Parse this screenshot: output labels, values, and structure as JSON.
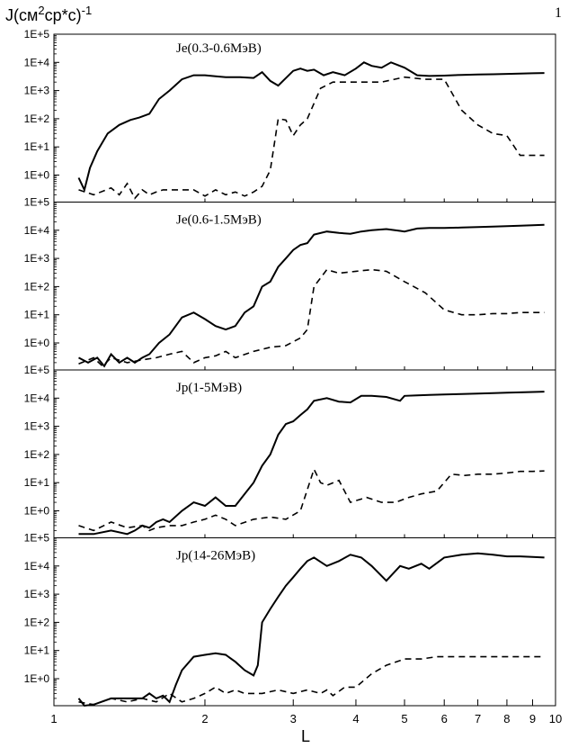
{
  "figure": {
    "ylabel_prefix": "J(см",
    "ylabel_sup1": "2",
    "ylabel_mid": "ср*с)",
    "ylabel_sup2": "-1",
    "xlabel": "L",
    "figure_number": "1"
  },
  "chart_data": [
    {
      "type": "line",
      "title": "Je(0.3-0.6МэВ)",
      "y_scale": "log",
      "ylim": [
        0.1,
        100000
      ],
      "y_ticks": [
        "1E+5",
        "1E+4",
        "1E+3",
        "1E+2",
        "1E+1",
        "1E+0"
      ],
      "x_scale": "log",
      "xlim": [
        1,
        10
      ],
      "series": [
        {
          "style": "solid",
          "x": [
            1.12,
            1.15,
            1.18,
            1.22,
            1.28,
            1.35,
            1.42,
            1.48,
            1.55,
            1.62,
            1.7,
            1.8,
            1.9,
            2.0,
            2.1,
            2.2,
            2.35,
            2.5,
            2.6,
            2.7,
            2.8,
            3.0,
            3.1,
            3.2,
            3.3,
            3.45,
            3.6,
            3.8,
            4.0,
            4.15,
            4.3,
            4.5,
            4.7,
            5.0,
            5.3,
            5.6,
            6.0,
            6.5,
            7.0,
            7.5,
            8.0,
            8.5,
            9.0,
            9.5
          ],
          "y": [
            0.8,
            0.3,
            1.8,
            7,
            30,
            60,
            90,
            110,
            150,
            500,
            1000,
            2500,
            3500,
            3500,
            3200,
            3000,
            3000,
            2800,
            4500,
            2200,
            1500,
            5000,
            6000,
            5000,
            5500,
            3500,
            4500,
            3500,
            6000,
            10000,
            7500,
            6500,
            10000,
            6500,
            3500,
            3300,
            3400,
            3600,
            3700,
            3800,
            3900,
            4000,
            4100,
            4200
          ]
        },
        {
          "style": "dashed",
          "x": [
            1.12,
            1.2,
            1.3,
            1.35,
            1.4,
            1.45,
            1.5,
            1.55,
            1.6,
            1.65,
            1.7,
            1.8,
            1.9,
            2.0,
            2.1,
            2.2,
            2.3,
            2.4,
            2.5,
            2.6,
            2.7,
            2.8,
            2.9,
            3.0,
            3.1,
            3.2,
            3.4,
            3.6,
            3.8,
            4.0,
            4.5,
            5.0,
            5.5,
            6.0,
            6.5,
            7.0,
            7.5,
            8.0,
            8.5,
            9.0,
            9.5
          ],
          "y": [
            0.3,
            0.2,
            0.35,
            0.2,
            0.5,
            0.15,
            0.3,
            0.2,
            0.25,
            0.3,
            0.3,
            0.3,
            0.3,
            0.18,
            0.3,
            0.2,
            0.25,
            0.18,
            0.25,
            0.4,
            1.5,
            100,
            90,
            25,
            60,
            100,
            1200,
            2000,
            2000,
            2000,
            2000,
            3000,
            2500,
            2500,
            200,
            60,
            30,
            25,
            5,
            5,
            5
          ]
        }
      ]
    },
    {
      "type": "line",
      "title": "Je(0.6-1.5МэВ)",
      "y_scale": "log",
      "ylim": [
        0.1,
        100000
      ],
      "y_ticks": [
        "1E+5",
        "1E+4",
        "1E+3",
        "1E+2",
        "1E+1",
        "1E+0"
      ],
      "x_scale": "log",
      "xlim": [
        1,
        10
      ],
      "series": [
        {
          "style": "solid",
          "x": [
            1.12,
            1.17,
            1.22,
            1.26,
            1.3,
            1.35,
            1.4,
            1.45,
            1.5,
            1.55,
            1.62,
            1.7,
            1.8,
            1.9,
            2.0,
            2.1,
            2.2,
            2.3,
            2.4,
            2.5,
            2.6,
            2.7,
            2.8,
            2.9,
            3.0,
            3.1,
            3.2,
            3.3,
            3.5,
            3.7,
            3.9,
            4.1,
            4.3,
            4.6,
            4.9,
            5.0,
            5.3,
            5.6,
            6.0,
            6.5,
            7.0,
            7.5,
            8.0,
            8.5,
            9.0,
            9.5
          ],
          "y": [
            0.3,
            0.2,
            0.3,
            0.15,
            0.4,
            0.2,
            0.3,
            0.2,
            0.3,
            0.4,
            1,
            2,
            8,
            12,
            7,
            4,
            3,
            4,
            12,
            20,
            100,
            150,
            500,
            1000,
            2000,
            3000,
            3500,
            7000,
            9000,
            8000,
            7500,
            9000,
            10000,
            11000,
            9500,
            9000,
            11500,
            12000,
            12000,
            12500,
            13000,
            13500,
            14000,
            14500,
            15000,
            15500
          ]
        },
        {
          "style": "dashed",
          "x": [
            1.12,
            1.2,
            1.25,
            1.3,
            1.4,
            1.5,
            1.6,
            1.7,
            1.8,
            1.9,
            2.0,
            2.1,
            2.2,
            2.3,
            2.5,
            2.7,
            2.9,
            3.1,
            3.2,
            3.3,
            3.5,
            3.7,
            4.0,
            4.3,
            4.6,
            5.0,
            5.5,
            6.0,
            6.5,
            7.0,
            7.5,
            8.0,
            8.5,
            9.0,
            9.5
          ],
          "y": [
            0.18,
            0.3,
            0.15,
            0.3,
            0.2,
            0.25,
            0.3,
            0.4,
            0.5,
            0.2,
            0.3,
            0.35,
            0.5,
            0.3,
            0.5,
            0.7,
            0.8,
            1.5,
            3,
            100,
            400,
            300,
            350,
            400,
            350,
            150,
            60,
            15,
            10,
            10,
            11,
            11,
            12,
            12,
            12
          ]
        }
      ]
    },
    {
      "type": "line",
      "title": "Jp(1-5МэВ)",
      "y_scale": "log",
      "ylim": [
        0.1,
        100000
      ],
      "y_ticks": [
        "1E+5",
        "1E+4",
        "1E+3",
        "1E+2",
        "1E+1",
        "1E+0"
      ],
      "x_scale": "log",
      "xlim": [
        1,
        10
      ],
      "series": [
        {
          "style": "solid",
          "x": [
            1.12,
            1.2,
            1.3,
            1.4,
            1.45,
            1.5,
            1.55,
            1.6,
            1.65,
            1.7,
            1.8,
            1.9,
            2.0,
            2.1,
            2.2,
            2.3,
            2.4,
            2.5,
            2.6,
            2.7,
            2.8,
            2.9,
            3.0,
            3.1,
            3.2,
            3.3,
            3.5,
            3.7,
            3.9,
            4.1,
            4.3,
            4.6,
            4.9,
            5.0,
            5.3,
            5.6,
            6.0,
            6.5,
            7.0,
            7.5,
            8.0,
            8.5,
            9.0,
            9.5
          ],
          "y": [
            0.15,
            0.15,
            0.2,
            0.15,
            0.2,
            0.3,
            0.25,
            0.4,
            0.5,
            0.4,
            1,
            2,
            1.5,
            3,
            1.5,
            1.5,
            4,
            10,
            40,
            100,
            500,
            1200,
            1500,
            2500,
            4000,
            8000,
            10000,
            7500,
            7000,
            12000,
            12000,
            11000,
            8000,
            12000,
            12500,
            13000,
            13500,
            14000,
            14500,
            15000,
            15500,
            16000,
            16500,
            17000
          ]
        },
        {
          "style": "dashed",
          "x": [
            1.12,
            1.2,
            1.3,
            1.4,
            1.5,
            1.55,
            1.6,
            1.7,
            1.8,
            1.9,
            2.0,
            2.1,
            2.2,
            2.3,
            2.5,
            2.7,
            2.9,
            3.1,
            3.3,
            3.4,
            3.5,
            3.7,
            3.9,
            4.2,
            4.5,
            4.8,
            5.1,
            5.4,
            5.8,
            6.2,
            6.6,
            7.0,
            7.5,
            8.0,
            8.5,
            9.0,
            9.5
          ],
          "y": [
            0.3,
            0.2,
            0.4,
            0.25,
            0.3,
            0.2,
            0.25,
            0.3,
            0.3,
            0.4,
            0.5,
            0.7,
            0.5,
            0.3,
            0.5,
            0.6,
            0.5,
            1,
            30,
            10,
            8,
            12,
            2,
            3,
            2,
            2,
            3,
            4,
            5,
            20,
            18,
            20,
            20,
            22,
            25,
            25,
            26
          ]
        }
      ]
    },
    {
      "type": "line",
      "title": "Jp(14-26МэВ)",
      "y_scale": "log",
      "ylim": [
        0.1,
        100000
      ],
      "y_ticks": [
        "1E+5",
        "1E+4",
        "1E+3",
        "1E+2",
        "1E+1",
        "1E+0",
        "1E-1"
      ],
      "x_scale": "log",
      "xlim": [
        1,
        10
      ],
      "x_ticks": [
        1,
        2,
        3,
        4,
        5,
        6,
        7,
        8,
        9,
        10
      ],
      "series": [
        {
          "style": "solid",
          "x": [
            1.12,
            1.15,
            1.2,
            1.3,
            1.4,
            1.5,
            1.55,
            1.6,
            1.65,
            1.7,
            1.75,
            1.8,
            1.9,
            2.0,
            2.1,
            2.2,
            2.3,
            2.4,
            2.5,
            2.55,
            2.6,
            2.7,
            2.8,
            2.9,
            3.0,
            3.1,
            3.2,
            3.3,
            3.5,
            3.7,
            3.9,
            4.1,
            4.3,
            4.6,
            4.9,
            5.1,
            5.4,
            5.6,
            6.0,
            6.5,
            7.0,
            7.5,
            8.0,
            8.5,
            9.0,
            9.5
          ],
          "y": [
            0.2,
            0.1,
            0.12,
            0.2,
            0.2,
            0.2,
            0.3,
            0.2,
            0.25,
            0.15,
            0.6,
            2,
            6,
            7,
            8,
            7,
            4,
            2,
            1.3,
            3,
            100,
            300,
            800,
            2000,
            4000,
            8000,
            15000,
            20000,
            10000,
            15000,
            25000,
            20000,
            10000,
            3000,
            10000,
            8000,
            12000,
            8000,
            20000,
            25000,
            28000,
            25000,
            22000,
            22000,
            21000,
            20000
          ]
        },
        {
          "style": "dashed",
          "x": [
            1.12,
            1.2,
            1.3,
            1.4,
            1.5,
            1.6,
            1.7,
            1.8,
            1.9,
            2.0,
            2.1,
            2.2,
            2.3,
            2.4,
            2.6,
            2.8,
            3.0,
            3.2,
            3.4,
            3.5,
            3.6,
            3.8,
            4.0,
            4.3,
            4.6,
            5.0,
            5.4,
            5.8,
            6.2,
            6.6,
            7.0,
            7.5,
            8.0,
            8.5,
            9.0,
            9.5
          ],
          "y": [
            0.15,
            0.12,
            0.2,
            0.15,
            0.2,
            0.15,
            0.3,
            0.15,
            0.2,
            0.3,
            0.5,
            0.3,
            0.4,
            0.3,
            0.3,
            0.4,
            0.3,
            0.4,
            0.3,
            0.4,
            0.25,
            0.5,
            0.5,
            1.5,
            3,
            5,
            5,
            6,
            6,
            6,
            6,
            6,
            6,
            6,
            6,
            6
          ]
        }
      ]
    }
  ]
}
